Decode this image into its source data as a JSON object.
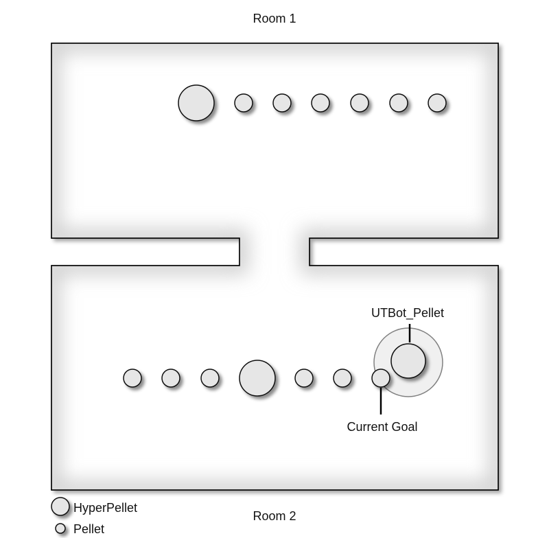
{
  "title_top": "Room 1",
  "title_bottom": "Room 2",
  "annotations": {
    "bot": "UTBot_Pellet",
    "goal": "Current Goal"
  },
  "legend": {
    "hyper": "HyperPellet",
    "pellet": "Pellet"
  },
  "colors": {
    "wall": "#000000",
    "floor": "#ffffff",
    "floor_shade": "#d9d9d9",
    "pellet_fill": "#e6e6e6",
    "pellet_stroke": "#111111",
    "bot_ring": "#808080",
    "bot_ring_fill": "#f0f0f0"
  },
  "room1": {
    "items": [
      "hyper",
      "pellet",
      "pellet",
      "pellet",
      "pellet",
      "pellet",
      "pellet"
    ]
  },
  "room2": {
    "items": [
      "pellet",
      "pellet",
      "pellet",
      "hyper",
      "pellet",
      "pellet",
      "goal"
    ],
    "bot_icon": "bot-ring-icon"
  }
}
